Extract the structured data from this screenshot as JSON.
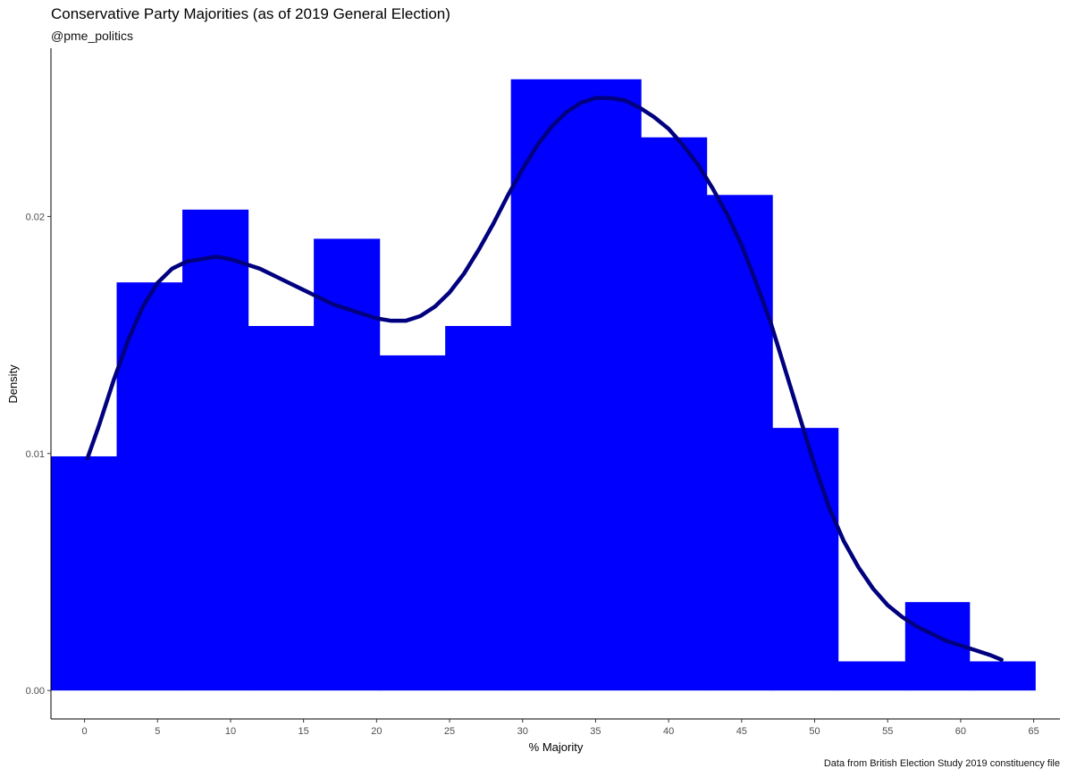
{
  "chart_data": {
    "type": "bar",
    "title": "Conservative Party Majorities (as of 2019 General Election)",
    "subtitle": "@pme_politics",
    "caption": "Data from British Election Study 2019 constituency file",
    "xlabel": "% Majority",
    "ylabel": "Density",
    "x_ticks": [
      0,
      5,
      10,
      15,
      20,
      25,
      30,
      35,
      40,
      45,
      50,
      55,
      60,
      65
    ],
    "y_ticks": [
      "0.00",
      "0.01",
      "0.02"
    ],
    "xlim": [
      -2.3,
      66.8
    ],
    "ylim": [
      -0.0012,
      0.0271
    ],
    "bar_color": "#0000ff",
    "line_color": "#00007f",
    "bins": [
      {
        "x0": -2.3,
        "x1": 2.2,
        "y": 0.00988
      },
      {
        "x0": 2.2,
        "x1": 6.7,
        "y": 0.01722
      },
      {
        "x0": 6.7,
        "x1": 11.2,
        "y": 0.02029
      },
      {
        "x0": 11.2,
        "x1": 15.7,
        "y": 0.01538
      },
      {
        "x0": 15.7,
        "x1": 20.2,
        "y": 0.01906
      },
      {
        "x0": 20.2,
        "x1": 24.7,
        "y": 0.01414
      },
      {
        "x0": 24.7,
        "x1": 29.2,
        "y": 0.01538
      },
      {
        "x0": 29.2,
        "x1": 38.1,
        "y": 0.02579
      },
      {
        "x0": 38.1,
        "x1": 42.6,
        "y": 0.02334
      },
      {
        "x0": 42.6,
        "x1": 47.1,
        "y": 0.02091
      },
      {
        "x0": 47.1,
        "x1": 51.6,
        "y": 0.01108
      },
      {
        "x0": 51.6,
        "x1": 56.2,
        "y": 0.00123
      },
      {
        "x0": 56.2,
        "x1": 60.6,
        "y": 0.00373
      },
      {
        "x0": 60.6,
        "x1": 65.1,
        "y": 0.00123
      }
    ],
    "density": {
      "x": [
        0.2,
        1,
        2,
        3,
        4,
        5,
        6,
        7,
        8,
        9,
        10,
        11,
        12,
        13,
        14,
        15,
        16,
        17,
        18,
        19,
        20,
        21,
        22,
        23,
        24,
        25,
        26,
        27,
        28,
        29,
        30,
        31,
        32,
        33,
        34,
        35,
        36,
        37,
        38,
        39,
        40,
        41,
        42,
        43,
        44,
        45,
        46,
        47,
        48,
        49,
        50,
        51,
        52,
        53,
        54,
        55,
        56,
        57,
        58,
        59,
        60,
        61,
        62,
        62.8
      ],
      "y": [
        0.0098,
        0.0112,
        0.0131,
        0.0148,
        0.0162,
        0.0172,
        0.0178,
        0.0181,
        0.0182,
        0.0183,
        0.0182,
        0.018,
        0.0178,
        0.0175,
        0.0172,
        0.0169,
        0.0166,
        0.0163,
        0.0161,
        0.0159,
        0.0157,
        0.0156,
        0.0156,
        0.0158,
        0.0162,
        0.0168,
        0.0176,
        0.0186,
        0.0197,
        0.0209,
        0.022,
        0.023,
        0.0238,
        0.0244,
        0.0248,
        0.025,
        0.025,
        0.0249,
        0.0246,
        0.0242,
        0.0237,
        0.023,
        0.0222,
        0.0212,
        0.0201,
        0.0188,
        0.0172,
        0.0155,
        0.0135,
        0.0115,
        0.0095,
        0.0077,
        0.0063,
        0.0052,
        0.0043,
        0.0036,
        0.0031,
        0.0027,
        0.0024,
        0.0021,
        0.0019,
        0.0017,
        0.0015,
        0.0013
      ]
    }
  }
}
